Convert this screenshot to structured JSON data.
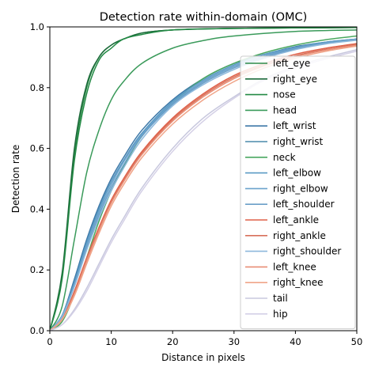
{
  "chart_data": {
    "type": "line",
    "title": "Detection rate within-domain (OMC)",
    "xlabel": "Distance in pixels",
    "ylabel": "Detection rate",
    "xlim": [
      0,
      50
    ],
    "ylim": [
      0,
      1.0
    ],
    "xticks": [
      0,
      10,
      20,
      30,
      40,
      50
    ],
    "yticks": [
      0.0,
      0.2,
      0.4,
      0.6,
      0.8,
      1.0
    ],
    "legend_position": "right",
    "grid": false,
    "series": [
      {
        "name": "left_eye",
        "color": "#2e8b4a",
        "points": [
          [
            0,
            0.0
          ],
          [
            2,
            0.18
          ],
          [
            4,
            0.58
          ],
          [
            6,
            0.8
          ],
          [
            8,
            0.9
          ],
          [
            10,
            0.94
          ],
          [
            12,
            0.96
          ],
          [
            15,
            0.98
          ],
          [
            20,
            0.99
          ],
          [
            30,
            0.995
          ],
          [
            50,
            0.998
          ]
        ]
      },
      {
        "name": "right_eye",
        "color": "#1e6b3c",
        "points": [
          [
            0,
            0.0
          ],
          [
            2,
            0.19
          ],
          [
            4,
            0.6
          ],
          [
            6,
            0.81
          ],
          [
            8,
            0.9
          ],
          [
            10,
            0.94
          ],
          [
            12,
            0.96
          ],
          [
            15,
            0.98
          ],
          [
            20,
            0.99
          ],
          [
            30,
            0.995
          ],
          [
            50,
            0.998
          ]
        ]
      },
      {
        "name": "nose",
        "color": "#238a45",
        "points": [
          [
            0,
            0.0
          ],
          [
            2,
            0.17
          ],
          [
            4,
            0.56
          ],
          [
            6,
            0.78
          ],
          [
            8,
            0.89
          ],
          [
            10,
            0.93
          ],
          [
            12,
            0.96
          ],
          [
            15,
            0.975
          ],
          [
            20,
            0.99
          ],
          [
            30,
            0.995
          ],
          [
            50,
            0.998
          ]
        ]
      },
      {
        "name": "head",
        "color": "#3a9a5a",
        "points": [
          [
            0,
            0.0
          ],
          [
            2,
            0.08
          ],
          [
            4,
            0.3
          ],
          [
            6,
            0.52
          ],
          [
            8,
            0.66
          ],
          [
            10,
            0.76
          ],
          [
            12,
            0.82
          ],
          [
            15,
            0.88
          ],
          [
            20,
            0.93
          ],
          [
            25,
            0.955
          ],
          [
            30,
            0.97
          ],
          [
            40,
            0.985
          ],
          [
            50,
            0.99
          ]
        ]
      },
      {
        "name": "left_wrist",
        "color": "#3d78a8",
        "points": [
          [
            0,
            0.0
          ],
          [
            2,
            0.05
          ],
          [
            4,
            0.17
          ],
          [
            6,
            0.3
          ],
          [
            8,
            0.41
          ],
          [
            10,
            0.5
          ],
          [
            12,
            0.57
          ],
          [
            15,
            0.66
          ],
          [
            20,
            0.76
          ],
          [
            25,
            0.83
          ],
          [
            30,
            0.88
          ],
          [
            35,
            0.91
          ],
          [
            40,
            0.935
          ],
          [
            45,
            0.95
          ],
          [
            50,
            0.96
          ]
        ]
      },
      {
        "name": "right_wrist",
        "color": "#4a8aac",
        "points": [
          [
            0,
            0.0
          ],
          [
            2,
            0.05
          ],
          [
            4,
            0.16
          ],
          [
            6,
            0.29
          ],
          [
            8,
            0.4
          ],
          [
            10,
            0.49
          ],
          [
            12,
            0.56
          ],
          [
            15,
            0.65
          ],
          [
            20,
            0.75
          ],
          [
            25,
            0.82
          ],
          [
            30,
            0.87
          ],
          [
            35,
            0.905
          ],
          [
            40,
            0.93
          ],
          [
            45,
            0.947
          ],
          [
            50,
            0.958
          ]
        ]
      },
      {
        "name": "neck",
        "color": "#4aa860",
        "points": [
          [
            0,
            0.0
          ],
          [
            2,
            0.03
          ],
          [
            4,
            0.12
          ],
          [
            6,
            0.24
          ],
          [
            8,
            0.36
          ],
          [
            10,
            0.46
          ],
          [
            12,
            0.54
          ],
          [
            15,
            0.64
          ],
          [
            20,
            0.75
          ],
          [
            25,
            0.83
          ],
          [
            30,
            0.88
          ],
          [
            35,
            0.915
          ],
          [
            40,
            0.94
          ],
          [
            45,
            0.958
          ],
          [
            50,
            0.97
          ]
        ]
      },
      {
        "name": "left_elbow",
        "color": "#5a9ac4",
        "points": [
          [
            0,
            0.0
          ],
          [
            2,
            0.05
          ],
          [
            4,
            0.16
          ],
          [
            6,
            0.29
          ],
          [
            8,
            0.4
          ],
          [
            10,
            0.49
          ],
          [
            12,
            0.56
          ],
          [
            15,
            0.65
          ],
          [
            20,
            0.755
          ],
          [
            25,
            0.825
          ],
          [
            30,
            0.875
          ],
          [
            35,
            0.91
          ],
          [
            40,
            0.933
          ],
          [
            45,
            0.95
          ],
          [
            50,
            0.96
          ]
        ]
      },
      {
        "name": "right_elbow",
        "color": "#6aa2cc",
        "points": [
          [
            0,
            0.0
          ],
          [
            2,
            0.05
          ],
          [
            4,
            0.15
          ],
          [
            6,
            0.28
          ],
          [
            8,
            0.39
          ],
          [
            10,
            0.48
          ],
          [
            12,
            0.555
          ],
          [
            15,
            0.645
          ],
          [
            20,
            0.75
          ],
          [
            25,
            0.82
          ],
          [
            30,
            0.87
          ],
          [
            35,
            0.905
          ],
          [
            40,
            0.93
          ],
          [
            45,
            0.948
          ],
          [
            50,
            0.96
          ]
        ]
      },
      {
        "name": "left_shoulder",
        "color": "#6a9fc8",
        "points": [
          [
            0,
            0.0
          ],
          [
            2,
            0.045
          ],
          [
            4,
            0.15
          ],
          [
            6,
            0.27
          ],
          [
            8,
            0.38
          ],
          [
            10,
            0.47
          ],
          [
            12,
            0.545
          ],
          [
            15,
            0.64
          ],
          [
            20,
            0.745
          ],
          [
            25,
            0.815
          ],
          [
            30,
            0.865
          ],
          [
            35,
            0.9
          ],
          [
            40,
            0.928
          ],
          [
            45,
            0.946
          ],
          [
            50,
            0.958
          ]
        ]
      },
      {
        "name": "left_ankle",
        "color": "#e06048",
        "points": [
          [
            0,
            0.0
          ],
          [
            2,
            0.04
          ],
          [
            4,
            0.13
          ],
          [
            6,
            0.24
          ],
          [
            8,
            0.34
          ],
          [
            10,
            0.43
          ],
          [
            12,
            0.5
          ],
          [
            15,
            0.59
          ],
          [
            20,
            0.7
          ],
          [
            25,
            0.78
          ],
          [
            30,
            0.84
          ],
          [
            35,
            0.88
          ],
          [
            40,
            0.91
          ],
          [
            45,
            0.93
          ],
          [
            50,
            0.945
          ]
        ]
      },
      {
        "name": "right_ankle",
        "color": "#d8705a",
        "points": [
          [
            0,
            0.0
          ],
          [
            2,
            0.04
          ],
          [
            4,
            0.125
          ],
          [
            6,
            0.235
          ],
          [
            8,
            0.335
          ],
          [
            10,
            0.425
          ],
          [
            12,
            0.495
          ],
          [
            15,
            0.585
          ],
          [
            20,
            0.695
          ],
          [
            25,
            0.775
          ],
          [
            30,
            0.835
          ],
          [
            35,
            0.875
          ],
          [
            40,
            0.905
          ],
          [
            45,
            0.926
          ],
          [
            50,
            0.942
          ]
        ]
      },
      {
        "name": "right_shoulder",
        "color": "#8cb8dc",
        "points": [
          [
            0,
            0.0
          ],
          [
            2,
            0.045
          ],
          [
            4,
            0.145
          ],
          [
            6,
            0.265
          ],
          [
            8,
            0.37
          ],
          [
            10,
            0.46
          ],
          [
            12,
            0.535
          ],
          [
            15,
            0.63
          ],
          [
            20,
            0.74
          ],
          [
            25,
            0.81
          ],
          [
            30,
            0.86
          ],
          [
            35,
            0.897
          ],
          [
            40,
            0.925
          ],
          [
            45,
            0.944
          ],
          [
            50,
            0.956
          ]
        ]
      },
      {
        "name": "left_knee",
        "color": "#e88c74",
        "points": [
          [
            0,
            0.0
          ],
          [
            2,
            0.038
          ],
          [
            4,
            0.12
          ],
          [
            6,
            0.23
          ],
          [
            8,
            0.33
          ],
          [
            10,
            0.42
          ],
          [
            12,
            0.49
          ],
          [
            15,
            0.58
          ],
          [
            20,
            0.69
          ],
          [
            25,
            0.77
          ],
          [
            30,
            0.83
          ],
          [
            35,
            0.872
          ],
          [
            40,
            0.902
          ],
          [
            45,
            0.924
          ],
          [
            50,
            0.94
          ]
        ]
      },
      {
        "name": "right_knee",
        "color": "#f0a488",
        "points": [
          [
            0,
            0.0
          ],
          [
            2,
            0.036
          ],
          [
            4,
            0.115
          ],
          [
            6,
            0.22
          ],
          [
            8,
            0.32
          ],
          [
            10,
            0.41
          ],
          [
            12,
            0.48
          ],
          [
            15,
            0.57
          ],
          [
            20,
            0.68
          ],
          [
            25,
            0.76
          ],
          [
            30,
            0.82
          ],
          [
            35,
            0.865
          ],
          [
            40,
            0.897
          ],
          [
            45,
            0.92
          ],
          [
            50,
            0.937
          ]
        ]
      },
      {
        "name": "tail",
        "color": "#c8c8de",
        "points": [
          [
            0,
            0.0
          ],
          [
            2,
            0.02
          ],
          [
            4,
            0.07
          ],
          [
            6,
            0.14
          ],
          [
            8,
            0.22
          ],
          [
            10,
            0.3
          ],
          [
            12,
            0.37
          ],
          [
            15,
            0.47
          ],
          [
            20,
            0.6
          ],
          [
            25,
            0.7
          ],
          [
            30,
            0.77
          ],
          [
            35,
            0.83
          ],
          [
            40,
            0.87
          ],
          [
            45,
            0.9
          ],
          [
            50,
            0.925
          ]
        ]
      },
      {
        "name": "hip",
        "color": "#d4d0e6",
        "points": [
          [
            0,
            0.0
          ],
          [
            2,
            0.02
          ],
          [
            4,
            0.065
          ],
          [
            6,
            0.13
          ],
          [
            8,
            0.21
          ],
          [
            10,
            0.29
          ],
          [
            12,
            0.36
          ],
          [
            15,
            0.46
          ],
          [
            20,
            0.59
          ],
          [
            25,
            0.69
          ],
          [
            30,
            0.765
          ],
          [
            35,
            0.825
          ],
          [
            40,
            0.865
          ],
          [
            45,
            0.895
          ],
          [
            50,
            0.92
          ]
        ]
      }
    ]
  }
}
